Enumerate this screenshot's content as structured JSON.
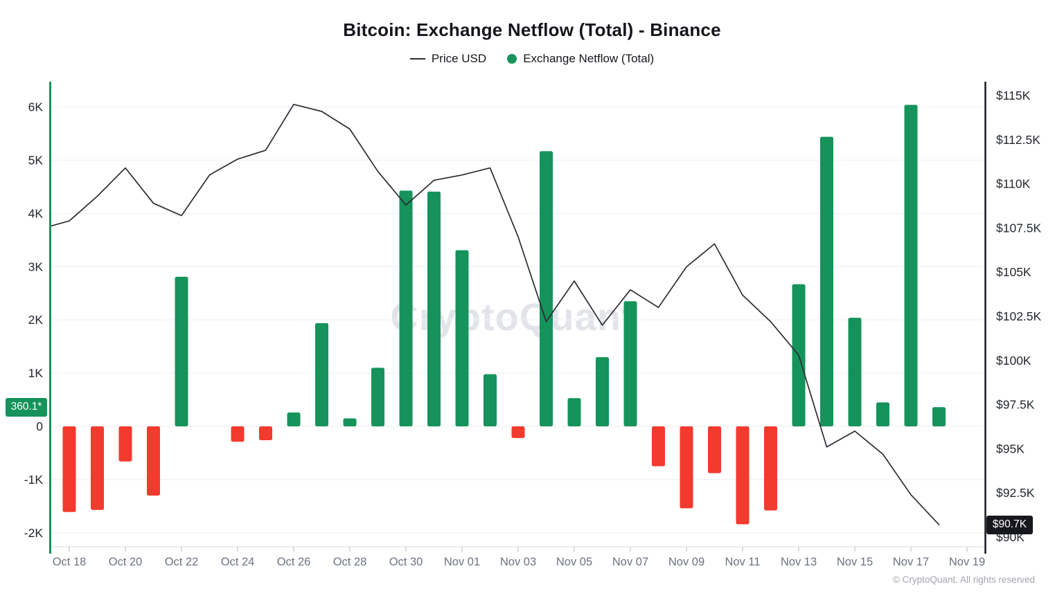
{
  "header": {
    "title": "Bitcoin: Exchange Netflow (Total) - Binance"
  },
  "legend": {
    "price_label": "Price USD",
    "netflow_label": "Exchange Netflow (Total)"
  },
  "watermark": {
    "text": "CryptoQuant"
  },
  "footer": {
    "copyright": "© CryptoQuant. All rights reserved"
  },
  "chart_data": {
    "type": "mixed",
    "title": "Bitcoin: Exchange Netflow (Total) - Binance",
    "grid": true,
    "legend_position": "top",
    "x": {
      "dates": [
        "Oct 18",
        "Oct 19",
        "Oct 20",
        "Oct 21",
        "Oct 22",
        "Oct 23",
        "Oct 24",
        "Oct 25",
        "Oct 26",
        "Oct 27",
        "Oct 28",
        "Oct 29",
        "Oct 30",
        "Oct 31",
        "Nov 01",
        "Nov 02",
        "Nov 03",
        "Nov 04",
        "Nov 05",
        "Nov 06",
        "Nov 07",
        "Nov 08",
        "Nov 09",
        "Nov 10",
        "Nov 11",
        "Nov 12",
        "Nov 13",
        "Nov 14",
        "Nov 15",
        "Nov 16",
        "Nov 17",
        "Nov 18"
      ],
      "tick_labels": [
        "Oct 18",
        "Oct 20",
        "Oct 22",
        "Oct 24",
        "Oct 26",
        "Oct 28",
        "Oct 30",
        "Nov 01",
        "Nov 03",
        "Nov 05",
        "Nov 07",
        "Nov 09",
        "Nov 11",
        "Nov 13",
        "Nov 15",
        "Nov 17",
        "Nov 19"
      ],
      "tick_day_offsets": [
        0,
        2,
        4,
        6,
        8,
        10,
        12,
        14,
        16,
        18,
        20,
        22,
        24,
        26,
        28,
        30,
        32
      ]
    },
    "series": [
      {
        "name": "Price USD",
        "type": "line",
        "axis": "right",
        "unit": "K USD",
        "edge_start_value": 107.6,
        "values": [
          107.9,
          109.3,
          110.9,
          108.9,
          108.2,
          110.5,
          111.4,
          111.9,
          114.5,
          114.1,
          113.1,
          110.7,
          108.8,
          110.2,
          110.5,
          110.9,
          107.0,
          102.2,
          104.5,
          102.0,
          104.0,
          103.0,
          105.3,
          106.6,
          103.7,
          102.2,
          100.3,
          95.1,
          96.0,
          94.7,
          92.4,
          90.7
        ]
      },
      {
        "name": "Exchange Netflow (Total)",
        "type": "bar",
        "axis": "left",
        "unit": "BTC",
        "values": [
          -1610,
          -1570,
          -660,
          -1300,
          2810,
          0,
          -290,
          -260,
          260,
          1940,
          150,
          1100,
          4430,
          4410,
          3310,
          980,
          -220,
          5170,
          530,
          1300,
          2350,
          -750,
          -1540,
          -880,
          -1840,
          -1580,
          2670,
          5440,
          2040,
          450,
          6040,
          360.1
        ]
      }
    ],
    "left_axis": {
      "name": "Exchange Netflow (Total)",
      "tick_labels": [
        "6K",
        "5K",
        "4K",
        "3K",
        "2K",
        "1K",
        "0",
        "-1K",
        "-2K"
      ],
      "tick_values": [
        6000,
        5000,
        4000,
        3000,
        2000,
        1000,
        0,
        -1000,
        -2000
      ],
      "range": [
        -2300,
        6300
      ],
      "badge_label": "360.1*",
      "badge_value": 360.1
    },
    "right_axis": {
      "name": "Price USD",
      "tick_labels": [
        "$115K",
        "$112.5K",
        "$110K",
        "$107.5K",
        "$105K",
        "$102.5K",
        "$100K",
        "$97.5K",
        "$95K",
        "$92.5K",
        "$90K"
      ],
      "tick_values": [
        115,
        112.5,
        110,
        107.5,
        105,
        102.5,
        100,
        97.5,
        95,
        92.5,
        90
      ],
      "range": [
        90,
        115
      ],
      "badge_label": "$90.7K",
      "badge_value": 90.7
    },
    "colors": {
      "bar_positive": "#15935B",
      "bar_negative": "#F23A2E",
      "price_line": "#2b2b33",
      "left_axis_line": "#15935B",
      "right_axis_line": "#17171f",
      "gridline": "#f1f2f4",
      "axis_baseline": "#e4e6e9",
      "tick_mark": "#c9ccd1",
      "axis_label": "#23272e",
      "date_label": "#6b7280",
      "badge_left_bg": "#15935B",
      "badge_right_bg": "#17171f"
    }
  }
}
